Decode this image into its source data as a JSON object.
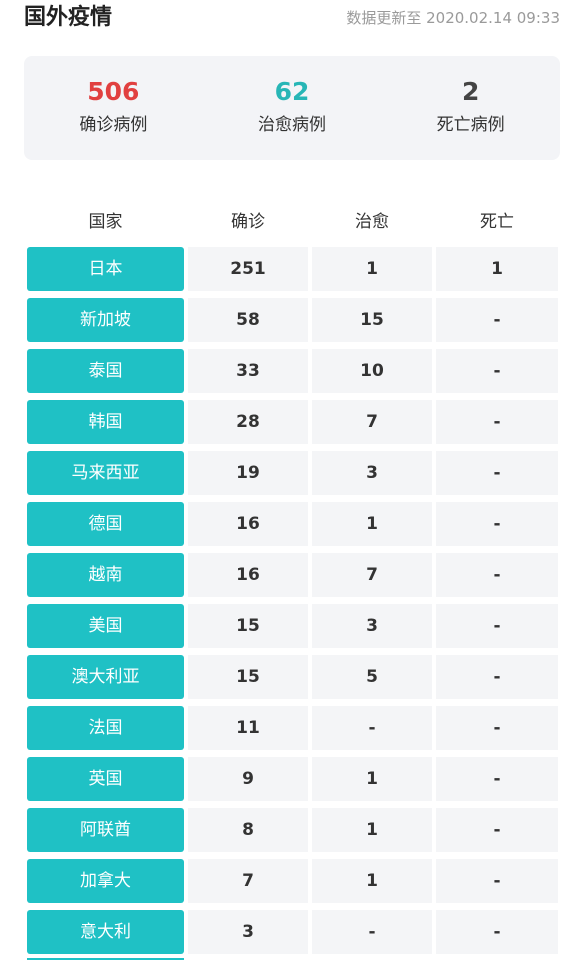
{
  "header": {
    "title": "国外疫情",
    "update_time": "数据更新至 2020.02.14 09:33"
  },
  "summary": {
    "confirmed": {
      "value": "506",
      "label": "确诊病例",
      "color": "#e14040"
    },
    "cured": {
      "value": "62",
      "label": "治愈病例",
      "color": "#27b6b6"
    },
    "dead": {
      "value": "2",
      "label": "死亡病例",
      "color": "#444444"
    }
  },
  "table": {
    "headers": {
      "country": "国家",
      "confirmed": "确诊",
      "cured": "治愈",
      "dead": "死亡"
    },
    "accent_color": "#1fc1c5",
    "rows": [
      {
        "country": "日本",
        "confirmed": "251",
        "cured": "1",
        "dead": "1"
      },
      {
        "country": "新加坡",
        "confirmed": "58",
        "cured": "15",
        "dead": "-"
      },
      {
        "country": "泰国",
        "confirmed": "33",
        "cured": "10",
        "dead": "-"
      },
      {
        "country": "韩国",
        "confirmed": "28",
        "cured": "7",
        "dead": "-"
      },
      {
        "country": "马来西亚",
        "confirmed": "19",
        "cured": "3",
        "dead": "-"
      },
      {
        "country": "德国",
        "confirmed": "16",
        "cured": "1",
        "dead": "-"
      },
      {
        "country": "越南",
        "confirmed": "16",
        "cured": "7",
        "dead": "-"
      },
      {
        "country": "美国",
        "confirmed": "15",
        "cured": "3",
        "dead": "-"
      },
      {
        "country": "澳大利亚",
        "confirmed": "15",
        "cured": "5",
        "dead": "-"
      },
      {
        "country": "法国",
        "confirmed": "11",
        "cured": "-",
        "dead": "-"
      },
      {
        "country": "英国",
        "confirmed": "9",
        "cured": "1",
        "dead": "-"
      },
      {
        "country": "阿联酋",
        "confirmed": "8",
        "cured": "1",
        "dead": "-"
      },
      {
        "country": "加拿大",
        "confirmed": "7",
        "cured": "1",
        "dead": "-"
      },
      {
        "country": "意大利",
        "confirmed": "3",
        "cured": "-",
        "dead": "-"
      }
    ]
  }
}
